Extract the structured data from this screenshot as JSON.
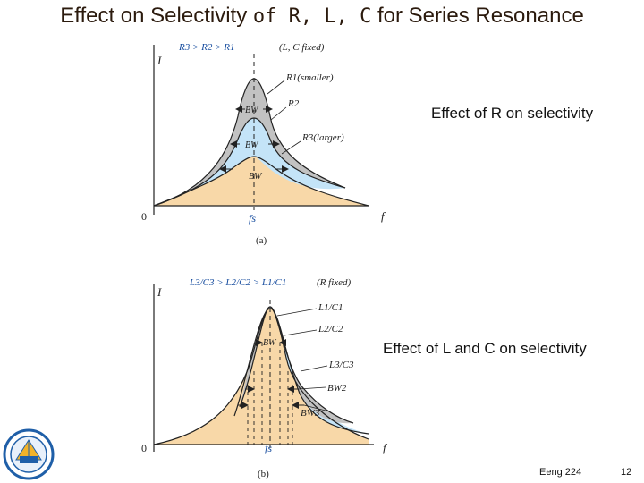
{
  "title": {
    "w1": "Effect",
    "w2": " on Selectivity ",
    "w3": "of R, L, C",
    "w4": " for Series ",
    "w5": "Resonance"
  },
  "diagram_a": {
    "top_left": "R3 > R2 > R1",
    "top_right": "(L, C fixed)",
    "y_axis": "I",
    "x_axis": "f",
    "origin": "0",
    "fs": "fs",
    "r1": "R1(smaller)",
    "r2": "R2",
    "r3": "R3(larger)",
    "bw": "BW",
    "caption": "(a)",
    "description": "Effect of R on selectivity"
  },
  "diagram_b": {
    "top_left": "L3/C3 > L2/C2 > L1/C1",
    "top_right": "(R  fixed)",
    "y_axis": "I",
    "x_axis": "f",
    "origin": "0",
    "fs": "fs",
    "l1": "L1/C1",
    "l2": "L2/C2",
    "l3": "L3/C3",
    "bw": "BW",
    "bw2": "BW2",
    "bw3": "BW3",
    "caption": "(b)",
    "description": "Effect of L and C on selectivity"
  },
  "footer": {
    "course": "Eeng 224",
    "page": "12"
  },
  "colors": {
    "title": "#2b1a0d",
    "tan": "#f8d8a8",
    "blue": "#c4e4f8",
    "gray": "#c2c2c2",
    "logo": "#1f5fa8"
  }
}
